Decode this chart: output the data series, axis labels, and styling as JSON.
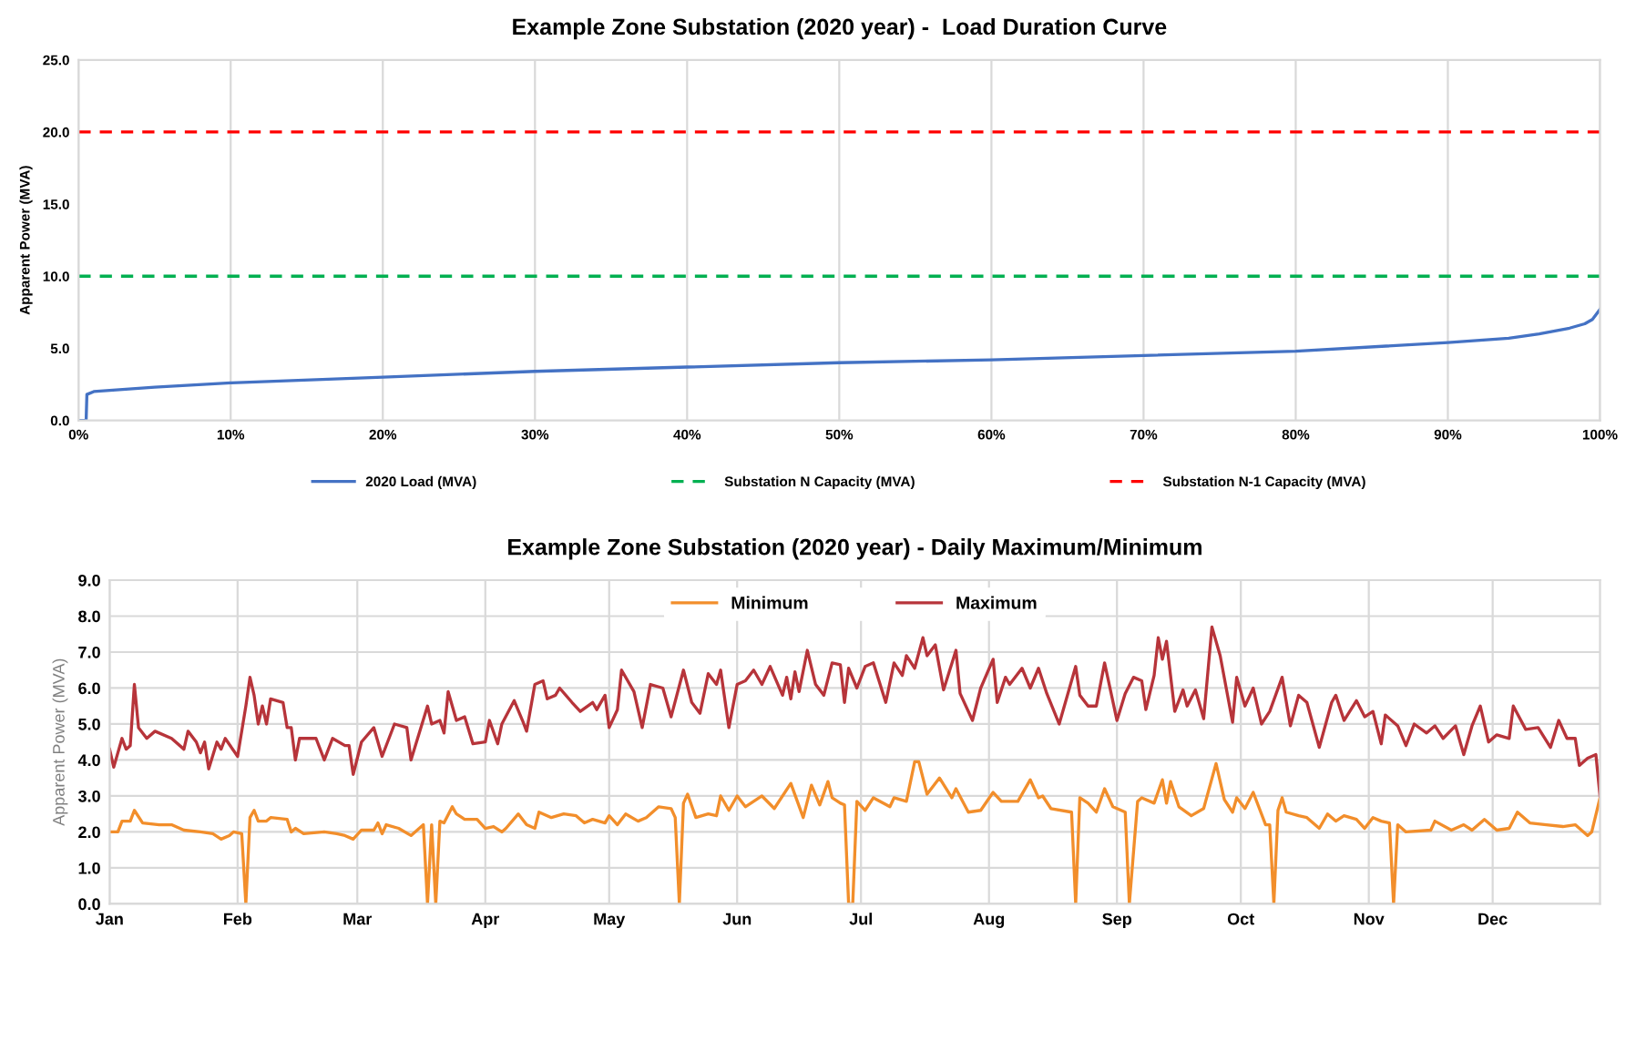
{
  "chart_data": [
    {
      "type": "line",
      "title": "Example Zone Substation (2020 year) -  Load Duration Curve",
      "ylabel": "Apparent Power (MVA)",
      "xlim": [
        0,
        100
      ],
      "xticks": [
        {
          "value": 0,
          "label": "0%"
        },
        {
          "value": 10,
          "label": "10%"
        },
        {
          "value": 20,
          "label": "20%"
        },
        {
          "value": 30,
          "label": "30%"
        },
        {
          "value": 40,
          "label": "40%"
        },
        {
          "value": 50,
          "label": "50%"
        },
        {
          "value": 60,
          "label": "60%"
        },
        {
          "value": 70,
          "label": "70%"
        },
        {
          "value": 80,
          "label": "80%"
        },
        {
          "value": 90,
          "label": "90%"
        },
        {
          "value": 100,
          "label": "100%"
        }
      ],
      "ylim": [
        0,
        25
      ],
      "yticks": [
        {
          "value": 0,
          "label": "0.0"
        },
        {
          "value": 5,
          "label": "5.0"
        },
        {
          "value": 10,
          "label": "10.0"
        },
        {
          "value": 15,
          "label": "15.0"
        },
        {
          "value": 20,
          "label": "20.0"
        },
        {
          "value": 25,
          "label": "25.0"
        }
      ],
      "grid": "x",
      "legend": "bottom",
      "series": [
        {
          "name": "2020 Load (MVA)",
          "color": "#4472c4",
          "line_style": "solid",
          "x": [
            0,
            0.5,
            0.55,
            1,
            5,
            10,
            20,
            30,
            40,
            50,
            60,
            70,
            80,
            90,
            94,
            96,
            98,
            99,
            99.5,
            100
          ],
          "values": [
            0,
            0,
            1.8,
            2.0,
            2.3,
            2.6,
            3.0,
            3.4,
            3.7,
            4.0,
            4.2,
            4.5,
            4.8,
            5.4,
            5.7,
            6.0,
            6.4,
            6.7,
            7.0,
            7.7
          ]
        },
        {
          "name": "Substation N Capacity (MVA)",
          "color": "#00b050",
          "line_style": "dashed",
          "x": [
            0,
            100
          ],
          "values": [
            10,
            10
          ]
        },
        {
          "name": "Substation N-1 Capacity (MVA)",
          "color": "#ff0000",
          "line_style": "dashed",
          "x": [
            0,
            100
          ],
          "values": [
            20,
            20
          ]
        }
      ]
    },
    {
      "type": "line",
      "title": "Example Zone Substation (2020 year) - Daily Maximum/Minimum",
      "ylabel": "Apparent Power (MVA)",
      "xlim": [
        "2020-01-01",
        "2020-12-27"
      ],
      "xticks": [
        {
          "value": "2020-01-01",
          "label": "Jan"
        },
        {
          "value": "2020-02-01",
          "label": "Feb"
        },
        {
          "value": "2020-03-01",
          "label": "Mar"
        },
        {
          "value": "2020-04-01",
          "label": "Apr"
        },
        {
          "value": "2020-05-01",
          "label": "May"
        },
        {
          "value": "2020-06-01",
          "label": "Jun"
        },
        {
          "value": "2020-07-01",
          "label": "Jul"
        },
        {
          "value": "2020-08-01",
          "label": "Aug"
        },
        {
          "value": "2020-09-01",
          "label": "Sep"
        },
        {
          "value": "2020-10-01",
          "label": "Oct"
        },
        {
          "value": "2020-11-01",
          "label": "Nov"
        },
        {
          "value": "2020-12-01",
          "label": "Dec"
        }
      ],
      "ylim": [
        0,
        9
      ],
      "yticks": [
        {
          "value": 0,
          "label": "0.0"
        },
        {
          "value": 1,
          "label": "1.0"
        },
        {
          "value": 2,
          "label": "2.0"
        },
        {
          "value": 3,
          "label": "3.0"
        },
        {
          "value": 4,
          "label": "4.0"
        },
        {
          "value": 5,
          "label": "5.0"
        },
        {
          "value": 6,
          "label": "6.0"
        },
        {
          "value": 7,
          "label": "7.0"
        },
        {
          "value": 8,
          "label": "8.0"
        },
        {
          "value": 9,
          "label": "9.0"
        }
      ],
      "grid": true,
      "legend": "top",
      "series": [
        {
          "name": "Minimum",
          "color": "#f28e2b",
          "line_style": "solid",
          "x": [
            "2020-01-01",
            "2020-01-03",
            "2020-01-04",
            "2020-01-06",
            "2020-01-07",
            "2020-01-09",
            "2020-01-13",
            "2020-01-16",
            "2020-01-19",
            "2020-01-23",
            "2020-01-26",
            "2020-01-28",
            "2020-01-30",
            "2020-01-31",
            "2020-02-02",
            "2020-02-03",
            "2020-02-04",
            "2020-02-05",
            "2020-02-06",
            "2020-02-08",
            "2020-02-09",
            "2020-02-13",
            "2020-02-14",
            "2020-02-15",
            "2020-02-17",
            "2020-02-22",
            "2020-02-25",
            "2020-02-27",
            "2020-02-29",
            "2020-03-02",
            "2020-03-05",
            "2020-03-06",
            "2020-03-07",
            "2020-03-08",
            "2020-03-11",
            "2020-03-14",
            "2020-03-17",
            "2020-03-18",
            "2020-03-19",
            "2020-03-20",
            "2020-03-21",
            "2020-03-22",
            "2020-03-24",
            "2020-03-25",
            "2020-03-27",
            "2020-03-30",
            "2020-04-01",
            "2020-04-03",
            "2020-04-05",
            "2020-04-06",
            "2020-04-09",
            "2020-04-11",
            "2020-04-13",
            "2020-04-14",
            "2020-04-17",
            "2020-04-20",
            "2020-04-23",
            "2020-04-25",
            "2020-04-27",
            "2020-04-30",
            "2020-05-01",
            "2020-05-03",
            "2020-05-05",
            "2020-05-08",
            "2020-05-10",
            "2020-05-13",
            "2020-05-16",
            "2020-05-17",
            "2020-05-18",
            "2020-05-19",
            "2020-05-20",
            "2020-05-22",
            "2020-05-25",
            "2020-05-27",
            "2020-05-28",
            "2020-05-30",
            "2020-06-01",
            "2020-06-03",
            "2020-06-07",
            "2020-06-10",
            "2020-06-14",
            "2020-06-17",
            "2020-06-19",
            "2020-06-21",
            "2020-06-23",
            "2020-06-24",
            "2020-06-26",
            "2020-06-27",
            "2020-06-28",
            "2020-06-29",
            "2020-06-30",
            "2020-07-02",
            "2020-07-04",
            "2020-07-08",
            "2020-07-09",
            "2020-07-12",
            "2020-07-14",
            "2020-07-15",
            "2020-07-17",
            "2020-07-20",
            "2020-07-23",
            "2020-07-24",
            "2020-07-27",
            "2020-07-30",
            "2020-08-02",
            "2020-08-04",
            "2020-08-08",
            "2020-08-11",
            "2020-08-13",
            "2020-08-14",
            "2020-08-16",
            "2020-08-21",
            "2020-08-22",
            "2020-08-23",
            "2020-08-25",
            "2020-08-27",
            "2020-08-29",
            "2020-08-31",
            "2020-09-03",
            "2020-09-04",
            "2020-09-06",
            "2020-09-07",
            "2020-09-10",
            "2020-09-12",
            "2020-09-13",
            "2020-09-14",
            "2020-09-16",
            "2020-09-19",
            "2020-09-22",
            "2020-09-25",
            "2020-09-27",
            "2020-09-29",
            "2020-09-30",
            "2020-10-02",
            "2020-10-04",
            "2020-10-07",
            "2020-10-08",
            "2020-10-09",
            "2020-10-10",
            "2020-10-11",
            "2020-10-12",
            "2020-10-15",
            "2020-10-17",
            "2020-10-20",
            "2020-10-22",
            "2020-10-24",
            "2020-10-26",
            "2020-10-29",
            "2020-10-31",
            "2020-11-02",
            "2020-11-04",
            "2020-11-06",
            "2020-11-07",
            "2020-11-08",
            "2020-11-10",
            "2020-11-16",
            "2020-11-17",
            "2020-11-21",
            "2020-11-24",
            "2020-11-26",
            "2020-11-29",
            "2020-12-02",
            "2020-12-05",
            "2020-12-07",
            "2020-12-10",
            "2020-12-14",
            "2020-12-18",
            "2020-12-21",
            "2020-12-24",
            "2020-12-25",
            "2020-12-27"
          ],
          "values": [
            2.0,
            2.0,
            2.3,
            2.3,
            2.6,
            2.25,
            2.2,
            2.2,
            2.05,
            2.0,
            1.95,
            1.8,
            1.9,
            2.0,
            1.95,
            0.0,
            2.4,
            2.6,
            2.3,
            2.3,
            2.4,
            2.35,
            2.0,
            2.1,
            1.95,
            2.0,
            1.95,
            1.9,
            1.8,
            2.05,
            2.05,
            2.25,
            1.95,
            2.2,
            2.1,
            1.9,
            2.2,
            0.0,
            2.2,
            0.0,
            2.3,
            2.25,
            2.7,
            2.5,
            2.35,
            2.35,
            2.1,
            2.15,
            2.0,
            2.1,
            2.5,
            2.2,
            2.1,
            2.55,
            2.4,
            2.5,
            2.45,
            2.25,
            2.35,
            2.25,
            2.45,
            2.2,
            2.5,
            2.3,
            2.4,
            2.7,
            2.65,
            2.4,
            0.0,
            2.8,
            3.05,
            2.4,
            2.5,
            2.45,
            3.0,
            2.6,
            3.0,
            2.7,
            3.0,
            2.65,
            3.35,
            2.4,
            3.3,
            2.75,
            3.4,
            2.95,
            2.8,
            2.75,
            0.0,
            0.0,
            2.85,
            2.6,
            2.95,
            2.7,
            2.95,
            2.85,
            3.95,
            3.95,
            3.05,
            3.5,
            2.95,
            3.2,
            2.55,
            2.6,
            3.1,
            2.85,
            2.85,
            3.45,
            2.95,
            3.0,
            2.65,
            2.55,
            0.0,
            2.95,
            2.8,
            2.55,
            3.2,
            2.7,
            2.55,
            0.0,
            2.85,
            2.95,
            2.8,
            3.45,
            2.8,
            3.4,
            2.7,
            2.45,
            2.65,
            3.9,
            2.9,
            2.55,
            2.95,
            2.65,
            3.1,
            2.2,
            2.2,
            0.0,
            2.6,
            2.95,
            2.55,
            2.45,
            2.4,
            2.1,
            2.5,
            2.3,
            2.45,
            2.35,
            2.1,
            2.4,
            2.3,
            2.25,
            0.0,
            2.2,
            2.0,
            2.05,
            2.3,
            2.05,
            2.2,
            2.05,
            2.35,
            2.05,
            2.1,
            2.55,
            2.25,
            2.2,
            2.15,
            2.2,
            1.9,
            2.0,
            2.95
          ]
        },
        {
          "name": "Maximum",
          "color": "#b7343a",
          "line_style": "solid",
          "x": [
            "2020-01-01",
            "2020-01-02",
            "2020-01-04",
            "2020-01-05",
            "2020-01-06",
            "2020-01-07",
            "2020-01-08",
            "2020-01-10",
            "2020-01-12",
            "2020-01-16",
            "2020-01-19",
            "2020-01-20",
            "2020-01-22",
            "2020-01-23",
            "2020-01-24",
            "2020-01-25",
            "2020-01-27",
            "2020-01-28",
            "2020-01-29",
            "2020-02-01",
            "2020-02-03",
            "2020-02-04",
            "2020-02-05",
            "2020-02-06",
            "2020-02-07",
            "2020-02-08",
            "2020-02-09",
            "2020-02-12",
            "2020-02-13",
            "2020-02-14",
            "2020-02-15",
            "2020-02-16",
            "2020-02-20",
            "2020-02-22",
            "2020-02-24",
            "2020-02-27",
            "2020-02-28",
            "2020-02-29",
            "2020-03-02",
            "2020-03-05",
            "2020-03-07",
            "2020-03-10",
            "2020-03-13",
            "2020-03-14",
            "2020-03-18",
            "2020-03-19",
            "2020-03-21",
            "2020-03-22",
            "2020-03-23",
            "2020-03-25",
            "2020-03-27",
            "2020-03-29",
            "2020-04-01",
            "2020-04-02",
            "2020-04-04",
            "2020-04-05",
            "2020-04-08",
            "2020-04-10",
            "2020-04-11",
            "2020-04-13",
            "2020-04-15",
            "2020-04-16",
            "2020-04-18",
            "2020-04-19",
            "2020-04-22",
            "2020-04-24",
            "2020-04-27",
            "2020-04-28",
            "2020-04-30",
            "2020-05-01",
            "2020-05-03",
            "2020-05-04",
            "2020-05-07",
            "2020-05-09",
            "2020-05-11",
            "2020-05-14",
            "2020-05-16",
            "2020-05-19",
            "2020-05-21",
            "2020-05-23",
            "2020-05-25",
            "2020-05-27",
            "2020-05-28",
            "2020-05-30",
            "2020-06-01",
            "2020-06-03",
            "2020-06-05",
            "2020-06-07",
            "2020-06-09",
            "2020-06-12",
            "2020-06-13",
            "2020-06-14",
            "2020-06-15",
            "2020-06-16",
            "2020-06-18",
            "2020-06-20",
            "2020-06-22",
            "2020-06-24",
            "2020-06-26",
            "2020-06-27",
            "2020-06-28",
            "2020-06-30",
            "2020-07-02",
            "2020-07-04",
            "2020-07-07",
            "2020-07-09",
            "2020-07-11",
            "2020-07-12",
            "2020-07-14",
            "2020-07-16",
            "2020-07-17",
            "2020-07-19",
            "2020-07-21",
            "2020-07-24",
            "2020-07-25",
            "2020-07-28",
            "2020-07-30",
            "2020-08-02",
            "2020-08-03",
            "2020-08-05",
            "2020-08-06",
            "2020-08-09",
            "2020-08-11",
            "2020-08-13",
            "2020-08-15",
            "2020-08-18",
            "2020-08-22",
            "2020-08-23",
            "2020-08-25",
            "2020-08-27",
            "2020-08-29",
            "2020-09-01",
            "2020-09-03",
            "2020-09-05",
            "2020-09-07",
            "2020-09-08",
            "2020-09-10",
            "2020-09-11",
            "2020-09-12",
            "2020-09-13",
            "2020-09-15",
            "2020-09-17",
            "2020-09-18",
            "2020-09-20",
            "2020-09-22",
            "2020-09-24",
            "2020-09-26",
            "2020-09-29",
            "2020-09-30",
            "2020-10-02",
            "2020-10-04",
            "2020-10-06",
            "2020-10-08",
            "2020-10-11",
            "2020-10-13",
            "2020-10-15",
            "2020-10-17",
            "2020-10-20",
            "2020-10-23",
            "2020-10-24",
            "2020-10-26",
            "2020-10-29",
            "2020-10-31",
            "2020-11-02",
            "2020-11-04",
            "2020-11-05",
            "2020-11-08",
            "2020-11-10",
            "2020-11-12",
            "2020-11-15",
            "2020-11-17",
            "2020-11-19",
            "2020-11-22",
            "2020-11-24",
            "2020-11-26",
            "2020-11-28",
            "2020-11-30",
            "2020-12-02",
            "2020-12-05",
            "2020-12-06",
            "2020-12-09",
            "2020-12-12",
            "2020-12-15",
            "2020-12-17",
            "2020-12-19",
            "2020-12-21",
            "2020-12-22",
            "2020-12-24",
            "2020-12-26",
            "2020-12-27"
          ],
          "values": [
            4.3,
            3.8,
            4.6,
            4.3,
            4.4,
            6.1,
            4.9,
            4.6,
            4.8,
            4.6,
            4.3,
            4.8,
            4.5,
            4.2,
            4.5,
            3.75,
            4.5,
            4.3,
            4.6,
            4.1,
            5.5,
            6.3,
            5.8,
            5.0,
            5.5,
            5.0,
            5.7,
            5.6,
            4.9,
            4.9,
            4.0,
            4.6,
            4.6,
            4.0,
            4.6,
            4.4,
            4.4,
            3.6,
            4.5,
            4.9,
            4.1,
            5.0,
            4.9,
            4.0,
            5.5,
            5.0,
            5.1,
            4.75,
            5.9,
            5.1,
            5.2,
            4.45,
            4.5,
            5.1,
            4.45,
            5.0,
            5.65,
            5.1,
            4.8,
            6.1,
            6.2,
            5.7,
            5.8,
            6.0,
            5.6,
            5.35,
            5.6,
            5.4,
            5.8,
            4.9,
            5.4,
            6.5,
            5.9,
            4.9,
            6.1,
            6.0,
            5.2,
            6.5,
            5.6,
            5.3,
            6.4,
            6.1,
            6.5,
            4.9,
            6.1,
            6.2,
            6.5,
            6.1,
            6.6,
            5.8,
            6.3,
            5.7,
            6.45,
            5.9,
            7.05,
            6.1,
            5.8,
            6.7,
            6.65,
            5.6,
            6.55,
            6.0,
            6.6,
            6.7,
            5.6,
            6.7,
            6.35,
            6.9,
            6.55,
            7.4,
            6.9,
            7.2,
            5.95,
            7.05,
            5.85,
            5.1,
            6.0,
            6.8,
            5.6,
            6.3,
            6.1,
            6.55,
            6.0,
            6.55,
            5.85,
            5.0,
            6.6,
            5.8,
            5.5,
            5.5,
            6.7,
            5.1,
            5.85,
            6.3,
            6.2,
            5.4,
            6.35,
            7.4,
            6.8,
            7.3,
            5.35,
            5.95,
            5.5,
            5.95,
            5.15,
            7.7,
            6.9,
            5.05,
            6.3,
            5.5,
            6.0,
            5.0,
            5.35,
            6.3,
            4.95,
            5.8,
            5.6,
            4.35,
            5.6,
            5.8,
            5.1,
            5.65,
            5.2,
            5.35,
            4.45,
            5.25,
            4.95,
            4.4,
            5.0,
            4.75,
            4.95,
            4.6,
            4.95,
            4.15,
            4.95,
            5.5,
            4.5,
            4.7,
            4.6,
            5.5,
            4.85,
            4.9,
            4.35,
            5.1,
            4.6,
            4.6,
            3.85,
            4.05,
            4.15,
            3.0
          ]
        }
      ]
    }
  ]
}
